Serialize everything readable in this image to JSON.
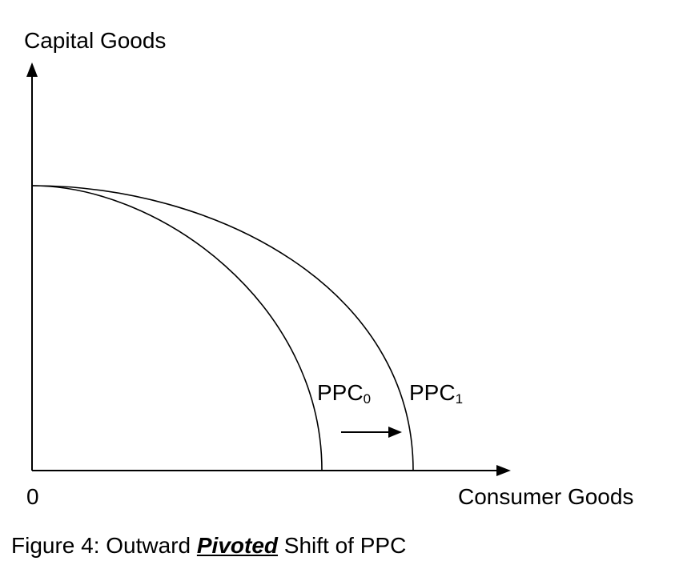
{
  "diagram": {
    "y_axis_label": "Capital Goods",
    "x_axis_label": "Consumer Goods",
    "origin_label": "0",
    "curves": [
      {
        "base": "PPC",
        "subscript": "0"
      },
      {
        "base": "PPC",
        "subscript": "1"
      }
    ],
    "shift_arrow": "right"
  },
  "caption": {
    "prefix": "Figure 4: Outward ",
    "emphasis": "Pivoted",
    "suffix": " Shift of PPC"
  }
}
